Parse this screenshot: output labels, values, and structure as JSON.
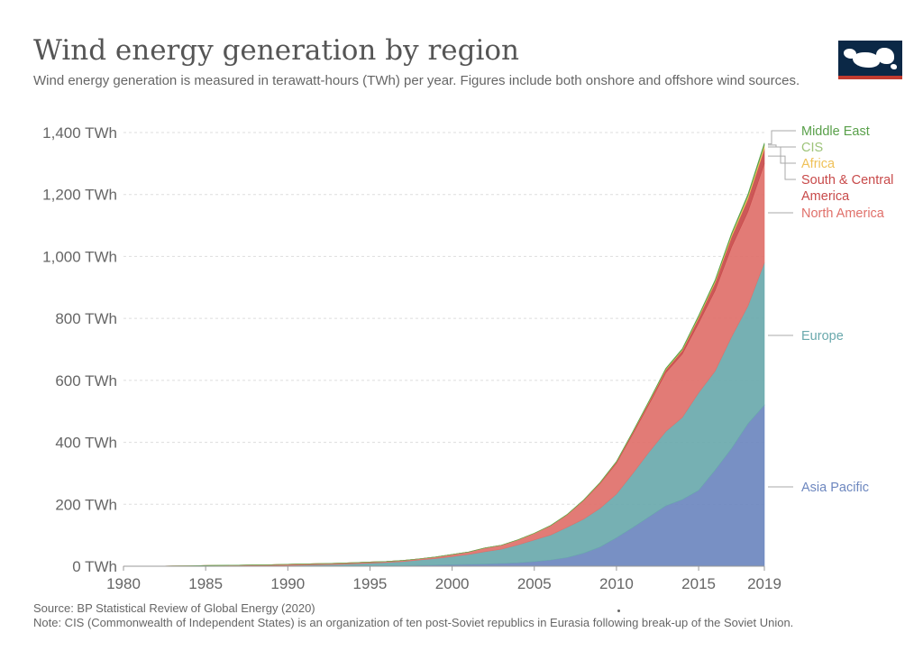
{
  "page": {
    "title": "Wind energy generation by region",
    "subtitle": "Wind energy generation is measured in terawatt-hours (TWh) per year. Figures include both onshore and offshore wind sources.",
    "source": "Source: BP Statistical Review of Global Energy (2020)",
    "note": "Note: CIS (Commonwealth of Independent States) is an organization of ten post-Soviet republics in Eurasia following break-up of the Soviet Union."
  },
  "chart_data": {
    "type": "area",
    "stacked": true,
    "grid": true,
    "x": [
      1980,
      1981,
      1982,
      1983,
      1984,
      1985,
      1986,
      1987,
      1988,
      1989,
      1990,
      1991,
      1992,
      1993,
      1994,
      1995,
      1996,
      1997,
      1998,
      1999,
      2000,
      2001,
      2002,
      2003,
      2004,
      2005,
      2006,
      2007,
      2008,
      2009,
      2010,
      2011,
      2012,
      2013,
      2014,
      2015,
      2016,
      2017,
      2018,
      2019
    ],
    "xlim": [
      1980,
      2019
    ],
    "ylim": [
      0,
      1400
    ],
    "x_ticks": [
      "1980",
      "1985",
      "1990",
      "1995",
      "2000",
      "2005",
      "2010",
      "2015",
      "2019"
    ],
    "y_ticks": [
      "0 TWh",
      "200 TWh",
      "400 TWh",
      "600 TWh",
      "800 TWh",
      "1,000 TWh",
      "1,200 TWh",
      "1,400 TWh"
    ],
    "series": [
      {
        "name": "Asia Pacific",
        "color": "#6d87bf",
        "values": [
          0,
          0,
          0,
          0,
          0,
          0,
          0,
          0,
          0,
          0,
          0.3,
          0.4,
          0.5,
          0.6,
          0.8,
          1,
          1.5,
          2,
          3,
          4,
          5,
          6,
          7,
          9,
          11,
          15,
          20,
          28,
          42,
          62,
          92,
          125,
          160,
          195,
          215,
          245,
          310,
          380,
          460,
          520
        ]
      },
      {
        "name": "Europe",
        "color": "#6aa9ad",
        "values": [
          0,
          0,
          0,
          0.1,
          0.2,
          0.4,
          0.6,
          0.8,
          1.2,
          1.6,
          2.5,
          3.5,
          4.5,
          5.5,
          7,
          9,
          10.5,
          13,
          17,
          21,
          26,
          32,
          40,
          46,
          58,
          70,
          81,
          98,
          110,
          125,
          141,
          175,
          210,
          240,
          265,
          315,
          320,
          360,
          380,
          460
        ]
      },
      {
        "name": "North America",
        "color": "#e0706a",
        "values": [
          0.1,
          0.2,
          0.4,
          0.8,
          1.2,
          2,
          2.5,
          2.8,
          3,
          3.2,
          3.5,
          3.5,
          3.5,
          3.5,
          3.6,
          3.6,
          3.5,
          3.6,
          4,
          5,
          7,
          8,
          12,
          13,
          16,
          21,
          30,
          40,
          60,
          80,
          100,
          128,
          155,
          190,
          205,
          225,
          260,
          290,
          305,
          320
        ]
      },
      {
        "name": "South & Central America",
        "color": "#c84a4a",
        "values": [
          0,
          0,
          0,
          0,
          0,
          0,
          0,
          0,
          0,
          0,
          0,
          0,
          0,
          0,
          0,
          0,
          0,
          0,
          0,
          0,
          0,
          0,
          0,
          0,
          0,
          0,
          0.3,
          0.5,
          1,
          2,
          3.5,
          5,
          7,
          9,
          11,
          17,
          25,
          33,
          41,
          48
        ]
      },
      {
        "name": "Africa",
        "color": "#efc158",
        "values": [
          0,
          0,
          0,
          0,
          0,
          0,
          0,
          0,
          0,
          0,
          0,
          0,
          0,
          0,
          0,
          0,
          0,
          0,
          0,
          0,
          0,
          0,
          0,
          0,
          0.3,
          0.5,
          0.5,
          0.7,
          0.8,
          1,
          1.2,
          1.5,
          2,
          2.5,
          3,
          4,
          5,
          7,
          9,
          11
        ]
      },
      {
        "name": "CIS",
        "color": "#9ec47a",
        "values": [
          0,
          0,
          0,
          0,
          0,
          0,
          0,
          0,
          0,
          0,
          0,
          0,
          0,
          0,
          0,
          0,
          0,
          0,
          0,
          0,
          0,
          0,
          0,
          0,
          0,
          0,
          0,
          0,
          0,
          0,
          0,
          0,
          0.2,
          0.3,
          0.4,
          0.5,
          0.6,
          0.8,
          1,
          1.2
        ]
      },
      {
        "name": "Middle East",
        "color": "#59a04a",
        "values": [
          0,
          0,
          0,
          0,
          0,
          0,
          0,
          0,
          0,
          0,
          0,
          0,
          0,
          0,
          0,
          0,
          0,
          0,
          0,
          0,
          0,
          0,
          0,
          0,
          0,
          0.1,
          0.1,
          0.2,
          0.3,
          0.5,
          0.8,
          1,
          1.5,
          2,
          2.5,
          3,
          3.5,
          4,
          5,
          6
        ]
      }
    ]
  }
}
